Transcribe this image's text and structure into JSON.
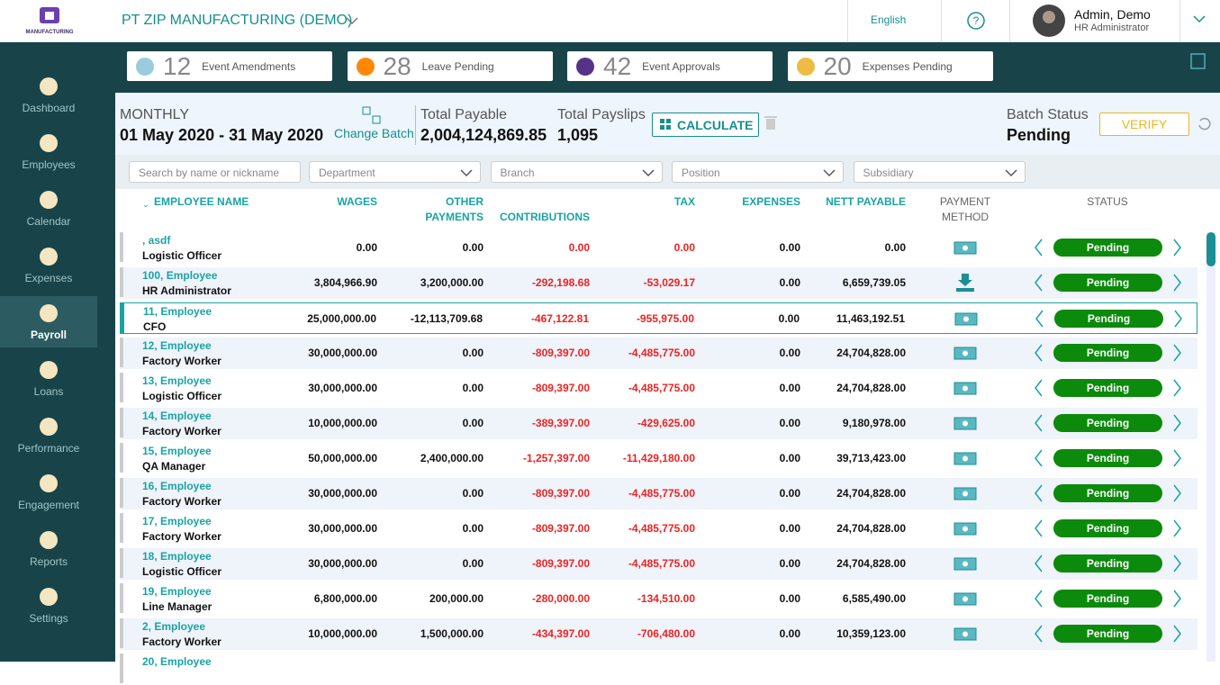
{
  "header": {
    "logo_text": "MANUFACTURING",
    "company": "PT ZIP MANUFACTURING (DEMO)",
    "language": "English",
    "user_name": "Admin, Demo",
    "user_role": "HR Administrator"
  },
  "sidebar": {
    "items": [
      "Dashboard",
      "Employees",
      "Calendar",
      "Expenses",
      "Payroll",
      "Loans",
      "Performance",
      "Engagement",
      "Reports",
      "Settings"
    ],
    "active": "Payroll"
  },
  "summary_cards": [
    {
      "count": "12",
      "label": "Event Amendments"
    },
    {
      "count": "28",
      "label": "Leave Pending"
    },
    {
      "count": "42",
      "label": "Event Approvals"
    },
    {
      "count": "20",
      "label": "Expenses Pending"
    }
  ],
  "batch": {
    "period_type": "MONTHLY",
    "period": "01 May 2020 - 31 May 2020",
    "change_batch": "Change Batch",
    "total_payable_label": "Total Payable",
    "total_payable": "2,004,124,869.85",
    "total_payslips_label": "Total Payslips",
    "total_payslips": "1,095",
    "calculate": "CALCULATE",
    "status_label": "Batch Status",
    "status": "Pending",
    "verify": "VERIFY"
  },
  "filters": {
    "search": "Search by name or nickname",
    "dropdowns": [
      "Department",
      "Branch",
      "Position",
      "Subsidiary"
    ]
  },
  "table": {
    "columns": {
      "name": "EMPLOYEE NAME",
      "wages": "WAGES",
      "other": "OTHER PAYMENTS",
      "contributions": "CONTRIBUTIONS",
      "tax": "TAX",
      "expenses": "EXPENSES",
      "nett": "NETT PAYABLE",
      "payment": "PAYMENT METHOD",
      "status": "STATUS"
    },
    "rows": [
      {
        "name": ", asdf",
        "position": "Logistic Officer",
        "wages": "0.00",
        "other": "0.00",
        "contributions": "0.00",
        "tax": "0.00",
        "expenses": "0.00",
        "nett": "0.00",
        "payment_icon": "cash",
        "status": "Pending"
      },
      {
        "name": "100, Employee",
        "position": "HR Administrator",
        "wages": "3,804,966.90",
        "other": "3,200,000.00",
        "contributions": "-292,198.68",
        "tax": "-53,029.17",
        "expenses": "0.00",
        "nett": "6,659,739.05",
        "payment_icon": "download",
        "status": "Pending"
      },
      {
        "name": "11, Employee",
        "position": "CFO",
        "wages": "25,000,000.00",
        "other": "-12,113,709.68",
        "contributions": "-467,122.81",
        "tax": "-955,975.00",
        "expenses": "0.00",
        "nett": "11,463,192.51",
        "payment_icon": "cash",
        "status": "Pending",
        "selected": true
      },
      {
        "name": "12, Employee",
        "position": "Factory Worker",
        "wages": "30,000,000.00",
        "other": "0.00",
        "contributions": "-809,397.00",
        "tax": "-4,485,775.00",
        "expenses": "0.00",
        "nett": "24,704,828.00",
        "payment_icon": "cash",
        "status": "Pending"
      },
      {
        "name": "13, Employee",
        "position": "Logistic Officer",
        "wages": "30,000,000.00",
        "other": "0.00",
        "contributions": "-809,397.00",
        "tax": "-4,485,775.00",
        "expenses": "0.00",
        "nett": "24,704,828.00",
        "payment_icon": "cash",
        "status": "Pending"
      },
      {
        "name": "14, Employee",
        "position": "Factory Worker",
        "wages": "10,000,000.00",
        "other": "0.00",
        "contributions": "-389,397.00",
        "tax": "-429,625.00",
        "expenses": "0.00",
        "nett": "9,180,978.00",
        "payment_icon": "cash",
        "status": "Pending"
      },
      {
        "name": "15, Employee",
        "position": "QA Manager",
        "wages": "50,000,000.00",
        "other": "2,400,000.00",
        "contributions": "-1,257,397.00",
        "tax": "-11,429,180.00",
        "expenses": "0.00",
        "nett": "39,713,423.00",
        "payment_icon": "cash",
        "status": "Pending"
      },
      {
        "name": "16, Employee",
        "position": "Factory Worker",
        "wages": "30,000,000.00",
        "other": "0.00",
        "contributions": "-809,397.00",
        "tax": "-4,485,775.00",
        "expenses": "0.00",
        "nett": "24,704,828.00",
        "payment_icon": "cash",
        "status": "Pending"
      },
      {
        "name": "17, Employee",
        "position": "Factory Worker",
        "wages": "30,000,000.00",
        "other": "0.00",
        "contributions": "-809,397.00",
        "tax": "-4,485,775.00",
        "expenses": "0.00",
        "nett": "24,704,828.00",
        "payment_icon": "cash",
        "status": "Pending"
      },
      {
        "name": "18, Employee",
        "position": "Logistic Officer",
        "wages": "30,000,000.00",
        "other": "0.00",
        "contributions": "-809,397.00",
        "tax": "-4,485,775.00",
        "expenses": "0.00",
        "nett": "24,704,828.00",
        "payment_icon": "cash",
        "status": "Pending"
      },
      {
        "name": "19, Employee",
        "position": "Line Manager",
        "wages": "6,800,000.00",
        "other": "200,000.00",
        "contributions": "-280,000.00",
        "tax": "-134,510.00",
        "expenses": "0.00",
        "nett": "6,585,490.00",
        "payment_icon": "cash",
        "status": "Pending"
      },
      {
        "name": "2, Employee",
        "position": "Factory Worker",
        "wages": "10,000,000.00",
        "other": "1,500,000.00",
        "contributions": "-434,397.00",
        "tax": "-706,480.00",
        "expenses": "0.00",
        "nett": "10,359,123.00",
        "payment_icon": "cash",
        "status": "Pending"
      },
      {
        "name": "20, Employee"
      }
    ]
  }
}
